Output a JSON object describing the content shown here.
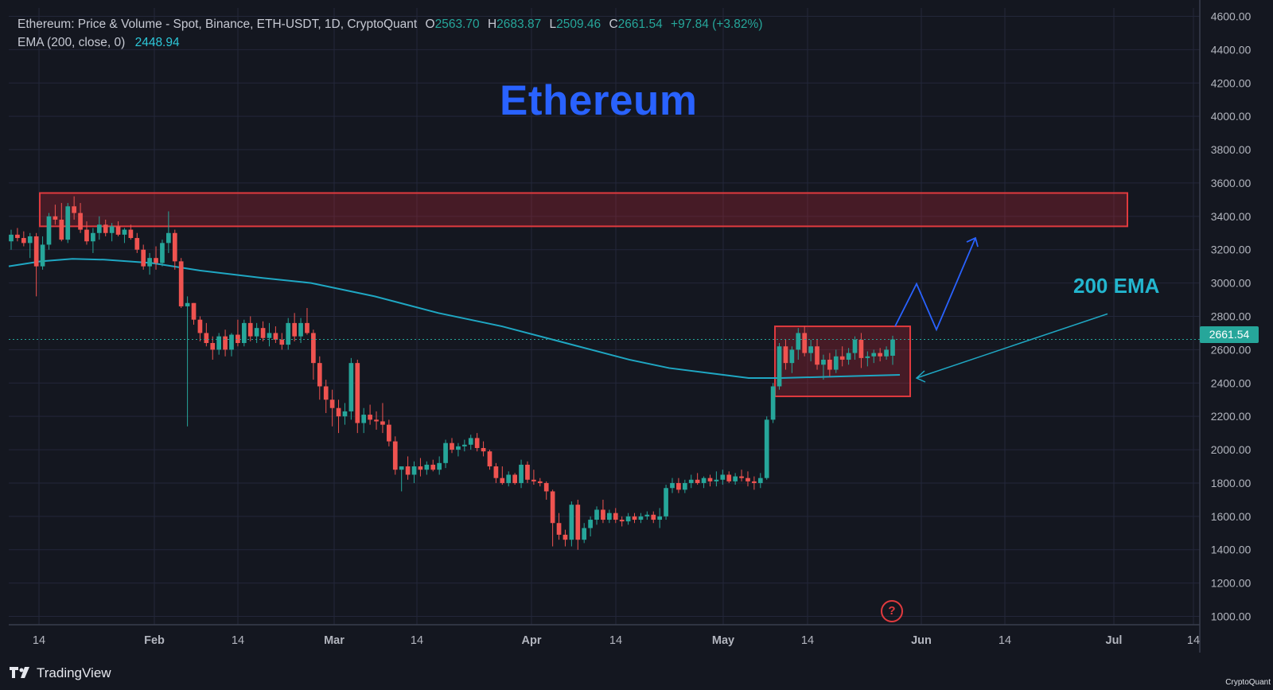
{
  "header": {
    "symbol_line": "Ethereum: Price & Volume - Spot, Binance, ETH-USDT, 1D, CryptoQuant",
    "open_label": "O",
    "open": "2563.70",
    "high_label": "H",
    "high": "2683.87",
    "low_label": "L",
    "low": "2509.46",
    "close_label": "C",
    "close": "2661.54",
    "change": "+97.84 (+3.82%)",
    "ema_label": "EMA (200, close, 0)",
    "ema_value": "2448.94"
  },
  "annotations": {
    "title": "Ethereum",
    "ema_label": "200 EMA",
    "help": "?"
  },
  "branding": {
    "logo": "TradingView",
    "watermark": "CryptoQuant"
  },
  "colors": {
    "up": "#26a69a",
    "down": "#ef5350",
    "ema": "#1fa7c3",
    "zone": "#e03a3e",
    "projection": "#2962ff",
    "grid": "#23273a",
    "background": "#141720"
  },
  "chart_data": {
    "type": "candlestick",
    "title": "Ethereum",
    "current_price": "2661.54",
    "ylim": [
      950,
      4650
    ],
    "yticks": [
      "4600.00",
      "4400.00",
      "4200.00",
      "4000.00",
      "3800.00",
      "3600.00",
      "3400.00",
      "3200.00",
      "3000.00",
      "2800.00",
      "2600.00",
      "2400.00",
      "2200.00",
      "2000.00",
      "1800.00",
      "1600.00",
      "1400.00",
      "1200.00",
      "1000.00"
    ],
    "xticks": [
      "14",
      "Feb",
      "14",
      "Mar",
      "14",
      "Apr",
      "14",
      "May",
      "14",
      "Jun",
      "14",
      "Jul",
      "14"
    ],
    "candles": [
      [
        3250,
        3320,
        3200,
        3290
      ],
      [
        3290,
        3330,
        3250,
        3270
      ],
      [
        3270,
        3310,
        3220,
        3240
      ],
      [
        3240,
        3300,
        3150,
        3280
      ],
      [
        3280,
        3300,
        2920,
        3100
      ],
      [
        3100,
        3280,
        3080,
        3230
      ],
      [
        3230,
        3420,
        3200,
        3400
      ],
      [
        3400,
        3470,
        3350,
        3380
      ],
      [
        3380,
        3480,
        3250,
        3260
      ],
      [
        3260,
        3480,
        3240,
        3460
      ],
      [
        3460,
        3520,
        3380,
        3420
      ],
      [
        3420,
        3480,
        3300,
        3320
      ],
      [
        3320,
        3370,
        3230,
        3250
      ],
      [
        3250,
        3330,
        3180,
        3300
      ],
      [
        3300,
        3400,
        3260,
        3350
      ],
      [
        3350,
        3380,
        3280,
        3300
      ],
      [
        3300,
        3360,
        3250,
        3340
      ],
      [
        3340,
        3370,
        3280,
        3290
      ],
      [
        3290,
        3330,
        3240,
        3320
      ],
      [
        3320,
        3350,
        3260,
        3270
      ],
      [
        3270,
        3300,
        3180,
        3200
      ],
      [
        3200,
        3230,
        3080,
        3100
      ],
      [
        3100,
        3180,
        3050,
        3150
      ],
      [
        3150,
        3220,
        3080,
        3120
      ],
      [
        3120,
        3260,
        3100,
        3240
      ],
      [
        3240,
        3430,
        3180,
        3300
      ],
      [
        3300,
        3320,
        3080,
        3130
      ],
      [
        3130,
        3150,
        2850,
        2860
      ],
      [
        2860,
        2920,
        2140,
        2880
      ],
      [
        2880,
        2880,
        2750,
        2780
      ],
      [
        2780,
        2800,
        2650,
        2700
      ],
      [
        2700,
        2760,
        2620,
        2640
      ],
      [
        2640,
        2680,
        2540,
        2600
      ],
      [
        2600,
        2700,
        2570,
        2680
      ],
      [
        2680,
        2720,
        2560,
        2600
      ],
      [
        2600,
        2700,
        2560,
        2690
      ],
      [
        2690,
        2780,
        2620,
        2640
      ],
      [
        2640,
        2780,
        2620,
        2760
      ],
      [
        2760,
        2800,
        2650,
        2680
      ],
      [
        2680,
        2760,
        2640,
        2730
      ],
      [
        2730,
        2770,
        2650,
        2670
      ],
      [
        2670,
        2760,
        2620,
        2700
      ],
      [
        2700,
        2740,
        2640,
        2660
      ],
      [
        2660,
        2700,
        2600,
        2630
      ],
      [
        2630,
        2790,
        2600,
        2760
      ],
      [
        2760,
        2820,
        2650,
        2680
      ],
      [
        2680,
        2790,
        2640,
        2760
      ],
      [
        2760,
        2850,
        2690,
        2700
      ],
      [
        2700,
        2720,
        2420,
        2520
      ],
      [
        2520,
        2560,
        2300,
        2380
      ],
      [
        2380,
        2420,
        2220,
        2300
      ],
      [
        2300,
        2360,
        2140,
        2250
      ],
      [
        2250,
        2300,
        2100,
        2200
      ],
      [
        2200,
        2280,
        2150,
        2230
      ],
      [
        2230,
        2550,
        2180,
        2520
      ],
      [
        2520,
        2540,
        2100,
        2160
      ],
      [
        2160,
        2250,
        2100,
        2210
      ],
      [
        2210,
        2270,
        2150,
        2180
      ],
      [
        2180,
        2230,
        2120,
        2170
      ],
      [
        2170,
        2280,
        2100,
        2150
      ],
      [
        2150,
        2180,
        2020,
        2050
      ],
      [
        2050,
        2080,
        1850,
        1880
      ],
      [
        1880,
        1900,
        1750,
        1900
      ],
      [
        1900,
        1960,
        1820,
        1850
      ],
      [
        1850,
        1930,
        1800,
        1900
      ],
      [
        1900,
        1950,
        1840,
        1880
      ],
      [
        1880,
        1930,
        1850,
        1910
      ],
      [
        1910,
        1940,
        1870,
        1880
      ],
      [
        1880,
        1960,
        1850,
        1920
      ],
      [
        1920,
        2060,
        1890,
        2040
      ],
      [
        2040,
        2070,
        1980,
        2000
      ],
      [
        2000,
        2040,
        1960,
        2020
      ],
      [
        2020,
        2060,
        1990,
        2030
      ],
      [
        2030,
        2090,
        2000,
        2070
      ],
      [
        2070,
        2100,
        1990,
        2010
      ],
      [
        2010,
        2050,
        1960,
        1990
      ],
      [
        1990,
        2000,
        1880,
        1900
      ],
      [
        1900,
        1920,
        1800,
        1830
      ],
      [
        1830,
        1900,
        1790,
        1800
      ],
      [
        1800,
        1870,
        1780,
        1850
      ],
      [
        1850,
        1860,
        1790,
        1800
      ],
      [
        1800,
        1940,
        1770,
        1910
      ],
      [
        1910,
        1930,
        1800,
        1820
      ],
      [
        1820,
        1880,
        1790,
        1810
      ],
      [
        1810,
        1830,
        1780,
        1800
      ],
      [
        1800,
        1810,
        1700,
        1750
      ],
      [
        1750,
        1760,
        1420,
        1560
      ],
      [
        1560,
        1620,
        1460,
        1490
      ],
      [
        1490,
        1520,
        1420,
        1460
      ],
      [
        1460,
        1690,
        1420,
        1670
      ],
      [
        1670,
        1700,
        1400,
        1460
      ],
      [
        1460,
        1560,
        1440,
        1530
      ],
      [
        1530,
        1600,
        1480,
        1580
      ],
      [
        1580,
        1660,
        1550,
        1640
      ],
      [
        1640,
        1700,
        1560,
        1580
      ],
      [
        1580,
        1640,
        1560,
        1620
      ],
      [
        1620,
        1650,
        1560,
        1580
      ],
      [
        1580,
        1600,
        1540,
        1570
      ],
      [
        1570,
        1620,
        1550,
        1600
      ],
      [
        1600,
        1620,
        1560,
        1580
      ],
      [
        1580,
        1620,
        1560,
        1600
      ],
      [
        1600,
        1630,
        1580,
        1610
      ],
      [
        1610,
        1630,
        1560,
        1580
      ],
      [
        1580,
        1650,
        1530,
        1600
      ],
      [
        1600,
        1790,
        1580,
        1770
      ],
      [
        1770,
        1830,
        1740,
        1800
      ],
      [
        1800,
        1830,
        1740,
        1760
      ],
      [
        1760,
        1820,
        1740,
        1800
      ],
      [
        1800,
        1850,
        1770,
        1820
      ],
      [
        1820,
        1860,
        1790,
        1800
      ],
      [
        1800,
        1840,
        1770,
        1830
      ],
      [
        1830,
        1850,
        1780,
        1810
      ],
      [
        1810,
        1870,
        1780,
        1820
      ],
      [
        1820,
        1880,
        1790,
        1850
      ],
      [
        1850,
        1870,
        1800,
        1810
      ],
      [
        1810,
        1860,
        1790,
        1840
      ],
      [
        1840,
        1880,
        1810,
        1830
      ],
      [
        1830,
        1870,
        1780,
        1810
      ],
      [
        1810,
        1840,
        1760,
        1800
      ],
      [
        1800,
        1860,
        1770,
        1830
      ],
      [
        1830,
        2200,
        1820,
        2180
      ],
      [
        2180,
        2400,
        2160,
        2380
      ],
      [
        2380,
        2640,
        2360,
        2620
      ],
      [
        2620,
        2660,
        2480,
        2520
      ],
      [
        2520,
        2620,
        2460,
        2600
      ],
      [
        2600,
        2730,
        2540,
        2700
      ],
      [
        2700,
        2740,
        2560,
        2580
      ],
      [
        2580,
        2660,
        2530,
        2620
      ],
      [
        2620,
        2660,
        2480,
        2510
      ],
      [
        2510,
        2570,
        2420,
        2540
      ],
      [
        2540,
        2580,
        2440,
        2480
      ],
      [
        2480,
        2600,
        2460,
        2560
      ],
      [
        2560,
        2620,
        2500,
        2540
      ],
      [
        2540,
        2610,
        2510,
        2580
      ],
      [
        2580,
        2680,
        2540,
        2660
      ],
      [
        2660,
        2700,
        2490,
        2550
      ],
      [
        2550,
        2590,
        2500,
        2560
      ],
      [
        2560,
        2600,
        2520,
        2580
      ],
      [
        2580,
        2610,
        2530,
        2560
      ],
      [
        2560,
        2620,
        2540,
        2600
      ],
      [
        2563.7,
        2683.87,
        2509.46,
        2661.54
      ]
    ],
    "ema_200": [
      [
        0,
        3100
      ],
      [
        40,
        3130
      ],
      [
        80,
        3145
      ],
      [
        120,
        3140
      ],
      [
        180,
        3120
      ],
      [
        240,
        3075
      ],
      [
        320,
        3030
      ],
      [
        380,
        3000
      ],
      [
        460,
        2920
      ],
      [
        540,
        2820
      ],
      [
        620,
        2740
      ],
      [
        700,
        2640
      ],
      [
        780,
        2540
      ],
      [
        830,
        2490
      ],
      [
        880,
        2460
      ],
      [
        930,
        2430
      ],
      [
        970,
        2430
      ],
      [
        1050,
        2440
      ],
      [
        1120,
        2448.94
      ]
    ],
    "resistance_zone": [
      3340,
      3540
    ],
    "consolidation_zone": [
      2320,
      2740
    ],
    "projection_path": [
      [
        1125,
        2740
      ],
      [
        1152,
        2995
      ],
      [
        1177,
        2720
      ],
      [
        1226,
        3270
      ]
    ],
    "arrow_200ema": [
      [
        1392,
        2815
      ],
      [
        1152,
        2430
      ]
    ]
  }
}
